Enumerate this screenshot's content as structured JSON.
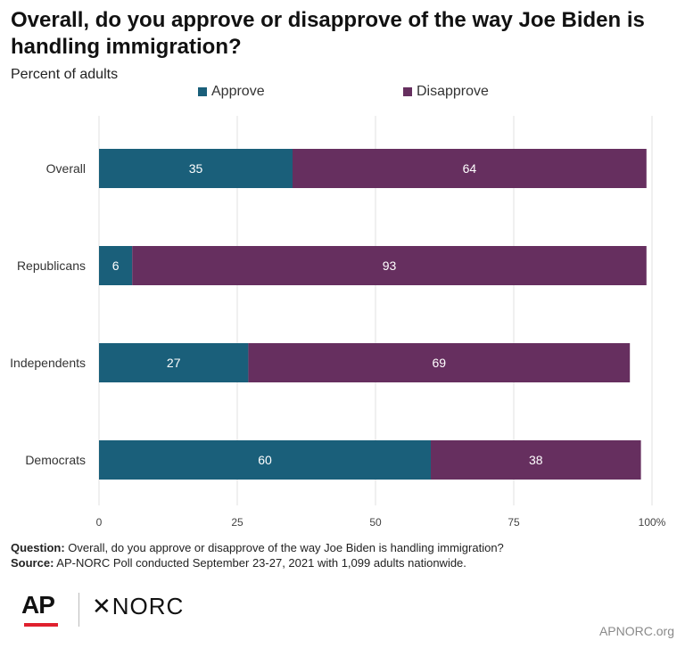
{
  "title": "Overall, do you approve or disapprove of the way Joe Biden is handling immigration?",
  "subtitle": "Percent of adults",
  "legend": [
    {
      "label": "Approve",
      "color": "#1a5f7a"
    },
    {
      "label": "Disapprove",
      "color": "#662f5f"
    }
  ],
  "chart_data": {
    "type": "bar",
    "orientation": "horizontal",
    "stacked": true,
    "categories": [
      "Overall",
      "Republicans",
      "Independents",
      "Democrats"
    ],
    "series": [
      {
        "name": "Approve",
        "color": "#1a5f7a",
        "values": [
          35,
          6,
          27,
          60
        ]
      },
      {
        "name": "Disapprove",
        "color": "#662f5f",
        "values": [
          64,
          93,
          69,
          38
        ]
      }
    ],
    "xticks": [
      0,
      25,
      50,
      75,
      100
    ],
    "xtick_labels": [
      "0",
      "25",
      "50",
      "75",
      "100%"
    ],
    "xlim": [
      0,
      100
    ],
    "grid": true,
    "legend_position": "top"
  },
  "footnote": {
    "question_label": "Question:",
    "question_text": " Overall, do you approve or disapprove of the way Joe Biden is handling immigration?",
    "source_label": "Source:",
    "source_text": " AP-NORC Poll conducted September 23-27, 2021 with 1,099 adults nationwide."
  },
  "logos": {
    "ap": "AP",
    "norc": "✕NORC"
  },
  "site": "APNORC.org"
}
